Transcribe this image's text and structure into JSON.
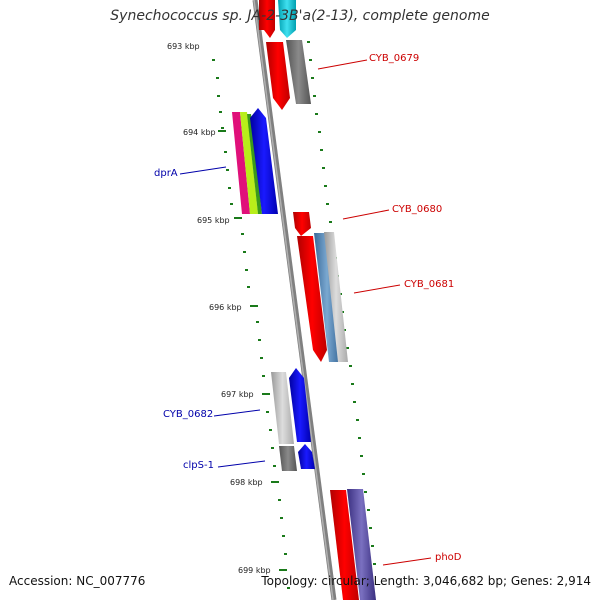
{
  "title": "Synechococcus sp. JA-2-3B'a(2-13), complete genome",
  "footer": {
    "accession": "Accession: NC_007776",
    "summary": "Topology: circular; Length: 3,046,682 bp; Genes: 2,914"
  },
  "ticks": [
    "693 kbp",
    "694 kbp",
    "695 kbp",
    "696 kbp",
    "697 kbp",
    "698 kbp",
    "699 kbp"
  ],
  "genes": {
    "cyb0679": "CYB_0679",
    "dpra": "dprA",
    "cyb0680": "CYB_0680",
    "cyb0681": "CYB_0681",
    "cyb0682": "CYB_0682",
    "clps1": "clpS-1",
    "phod": "phoD"
  },
  "colors": {
    "forward_label": "#cc0000",
    "reverse_label": "#0000aa",
    "backbone": "#808080",
    "ruler_dots": "#1a7a1a"
  }
}
